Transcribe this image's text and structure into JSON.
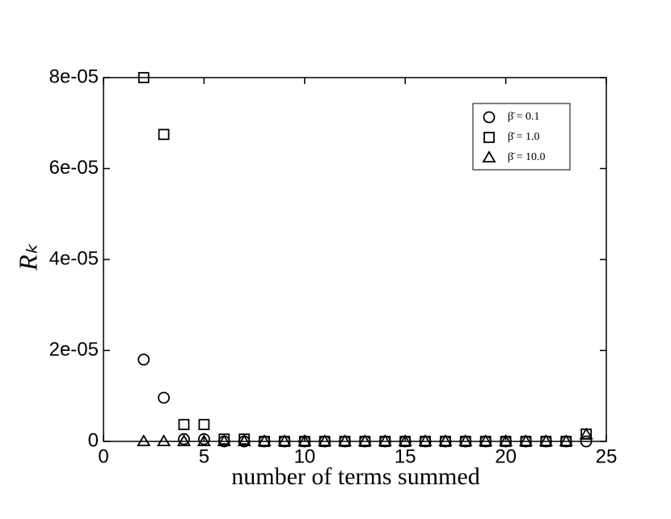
{
  "chart_data": {
    "type": "scatter",
    "xlabel": "number of terms summed",
    "ylabel": "Rₖ",
    "xlim": [
      0,
      25
    ],
    "xticks": [
      0,
      5,
      10,
      15,
      20,
      25
    ],
    "ylim": [
      0,
      8e-05
    ],
    "yticks": [
      0,
      {
        "value": 2e-05,
        "label": "2e-05"
      },
      {
        "value": 4e-05,
        "label": "4e-05"
      },
      {
        "value": 6e-05,
        "label": "6e-05"
      },
      {
        "value": 8e-05,
        "label": "8e-05"
      }
    ],
    "legend": "upper right",
    "series": [
      {
        "name": "β̄ = 0.1",
        "marker": "circle",
        "color": "#000000",
        "x": [
          2,
          3,
          4,
          5,
          6,
          7,
          8,
          9,
          10,
          11,
          12,
          13,
          14,
          15,
          16,
          17,
          18,
          19,
          20,
          21,
          22,
          23,
          24
        ],
        "values": [
          1.8e-05,
          9.6e-06,
          5e-07,
          5e-07,
          0,
          0,
          0,
          0,
          0,
          0,
          0,
          0,
          0,
          0,
          0,
          0,
          0,
          0,
          0,
          0,
          0,
          0,
          0
        ]
      },
      {
        "name": "β̄ = 1.0",
        "marker": "square",
        "color": "#000000",
        "x": [
          2,
          3,
          4,
          5,
          6,
          7,
          8,
          9,
          10,
          11,
          12,
          13,
          14,
          15,
          16,
          17,
          18,
          19,
          20,
          21,
          22,
          23,
          24
        ],
        "values": [
          8e-05,
          6.75e-05,
          3.7e-06,
          3.7e-06,
          5e-07,
          5e-07,
          0,
          0,
          0,
          0,
          0,
          0,
          0,
          0,
          0,
          0,
          0,
          0,
          0,
          0,
          0,
          0,
          1.6e-06
        ]
      },
      {
        "name": "β̄ = 10.0",
        "marker": "triangle",
        "color": "#000000",
        "x": [
          2,
          3,
          4,
          5,
          6,
          7,
          8,
          9,
          10,
          11,
          12,
          13,
          14,
          15,
          16,
          17,
          18,
          19,
          20,
          21,
          22,
          23,
          24
        ],
        "values": [
          0,
          0,
          0,
          0,
          0,
          0,
          0,
          0,
          0,
          0,
          0,
          0,
          0,
          0,
          0,
          0,
          0,
          0,
          0,
          0,
          0,
          0,
          1.5e-06
        ]
      }
    ]
  }
}
